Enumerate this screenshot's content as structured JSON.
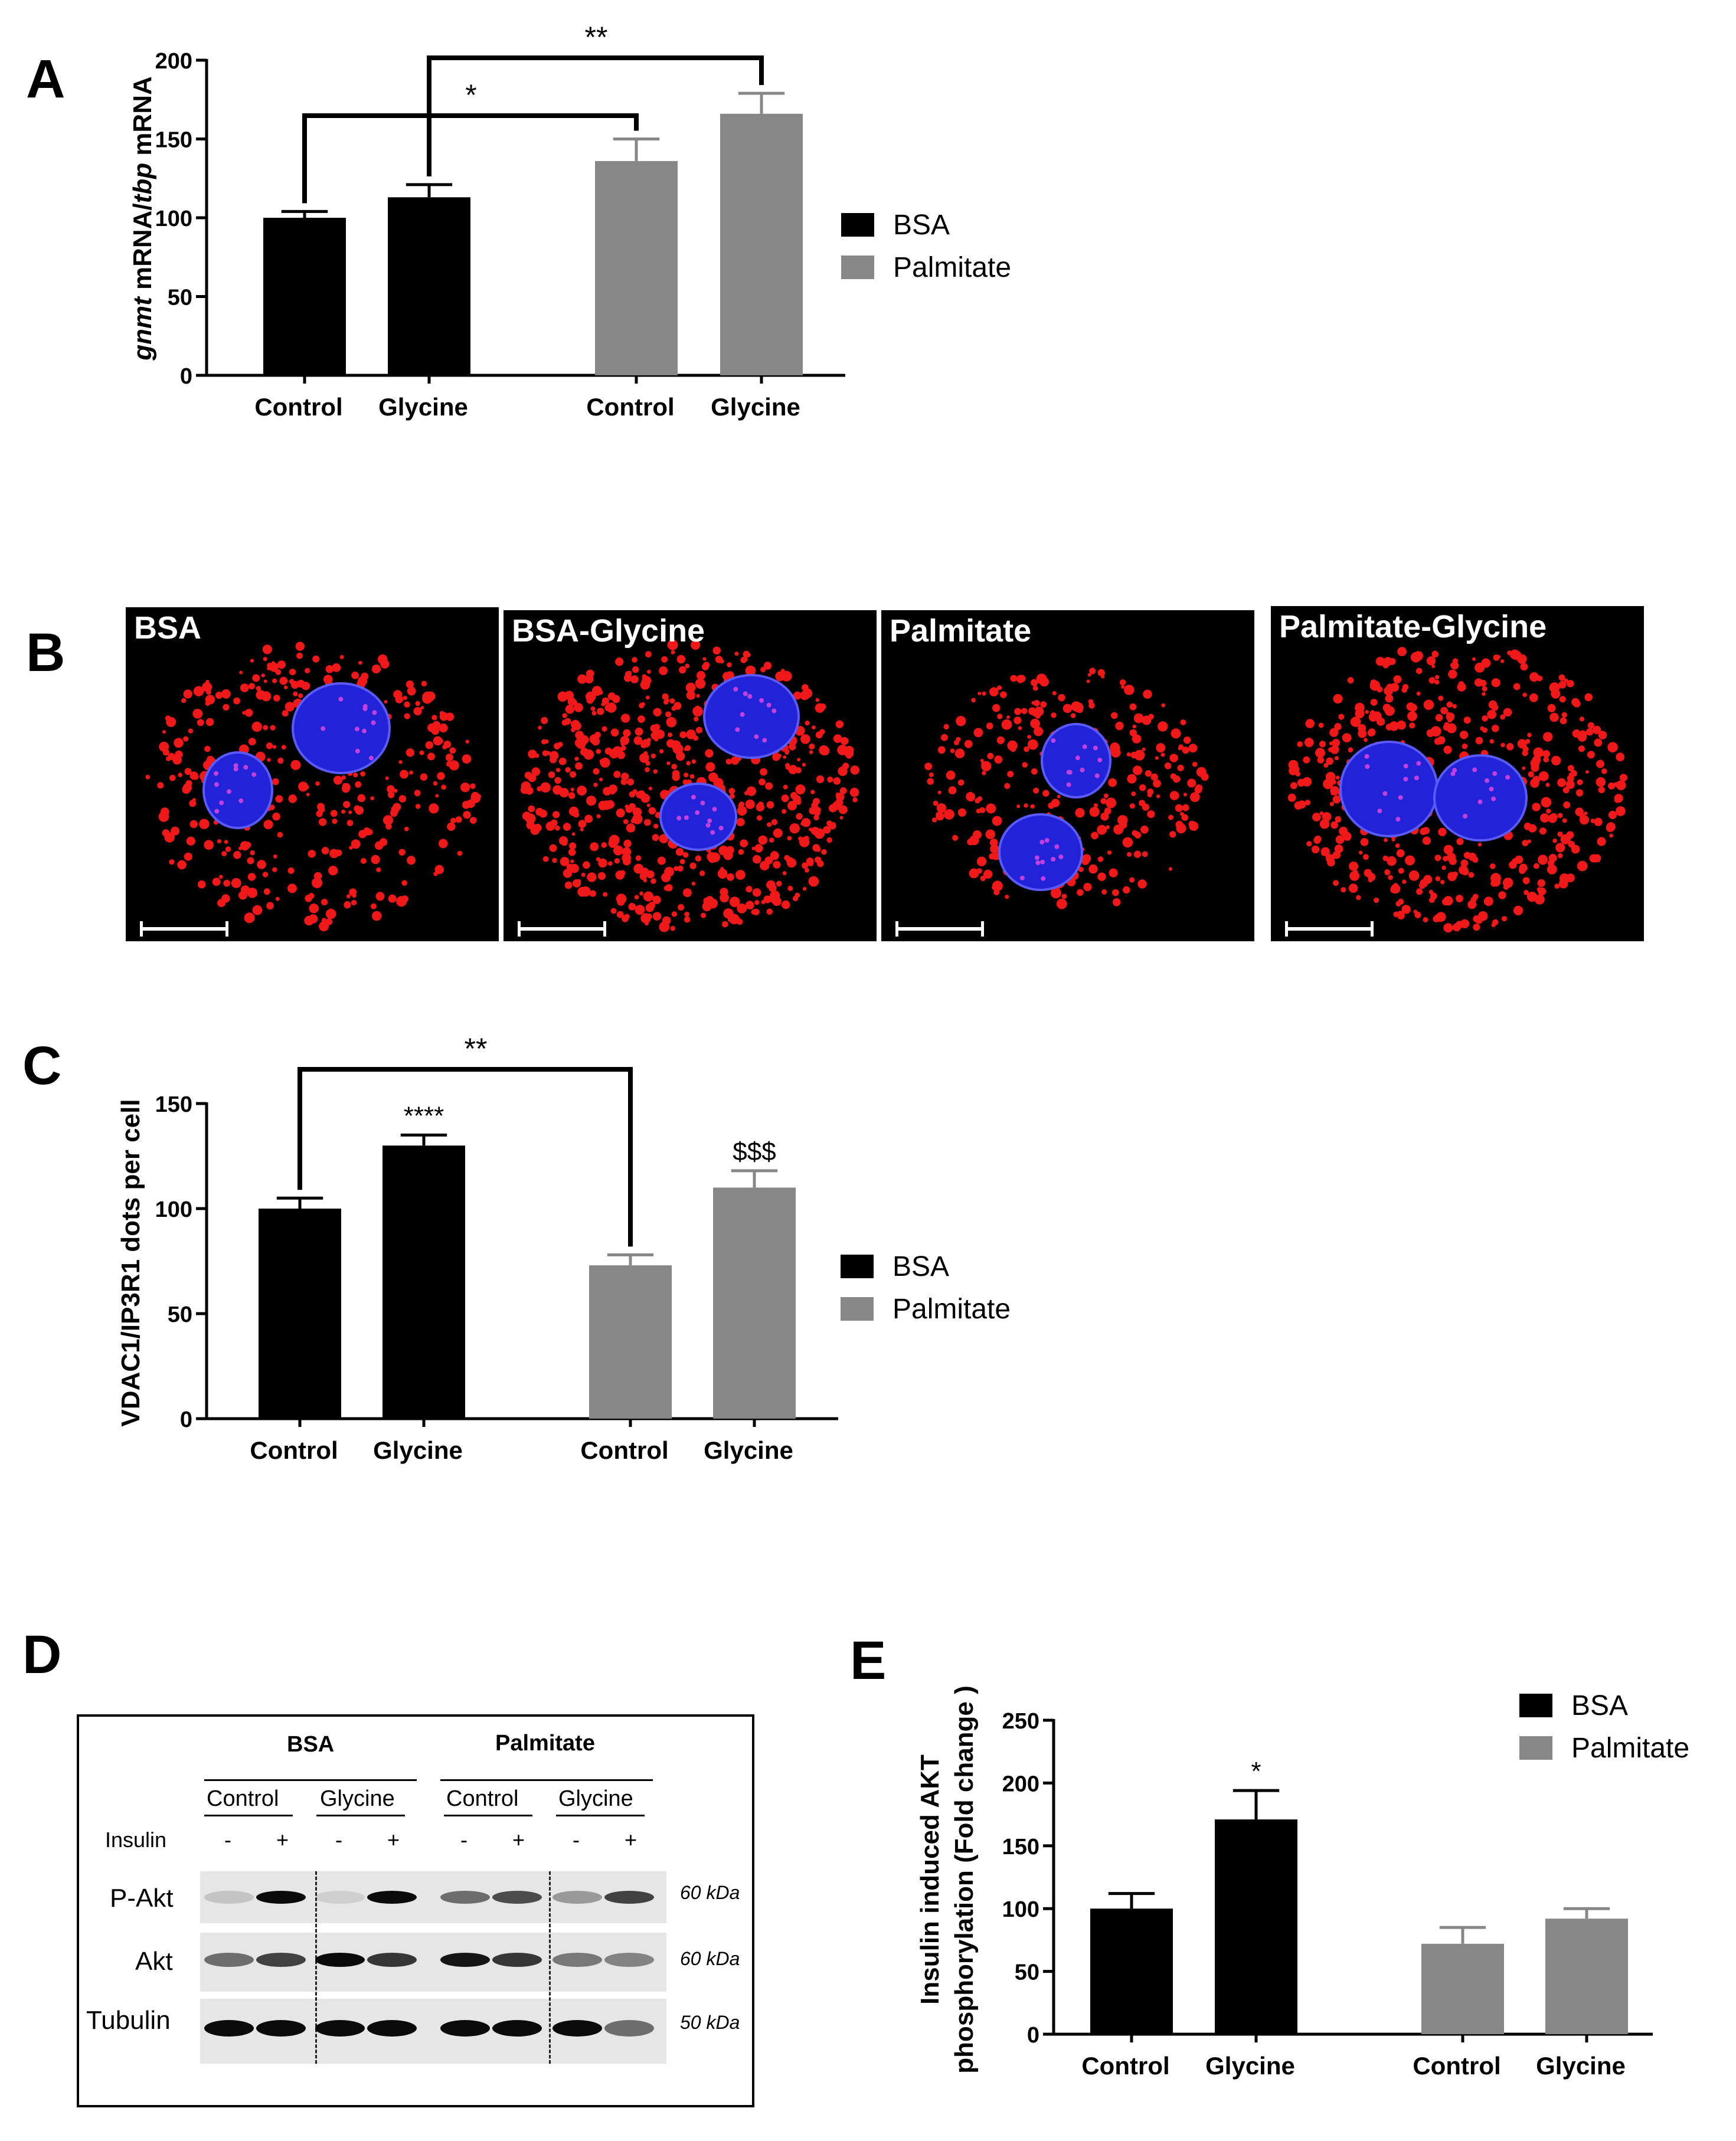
{
  "panels": {
    "A": "A",
    "B": "B",
    "C": "C",
    "D": "D",
    "E": "E"
  },
  "colors": {
    "bsa": "#000000",
    "palmitate": "#878787"
  },
  "chart_data": [
    {
      "id": "A",
      "type": "bar",
      "categories": [
        "Control",
        "Glycine",
        "Control",
        "Glycine"
      ],
      "groups": [
        "BSA",
        "BSA",
        "Palmitate",
        "Palmitate"
      ],
      "values": [
        100,
        113,
        136,
        166
      ],
      "errors": [
        4,
        8,
        14,
        13
      ],
      "ylabel_italic_1": "gnmt",
      "ylabel_mid": " mRNA/",
      "ylabel_italic_2": "tbp",
      "ylabel_end": " mRNA",
      "ylim": [
        0,
        200
      ],
      "yticks": [
        "0",
        "50",
        "100",
        "150",
        "200"
      ],
      "legend": [
        "BSA",
        "Palmitate"
      ],
      "annotations": [
        {
          "text": "*",
          "from": 0,
          "to": 2
        },
        {
          "text": "**",
          "from": 1,
          "to": 3
        }
      ]
    },
    {
      "id": "C",
      "type": "bar",
      "categories": [
        "Control",
        "Glycine",
        "Control",
        "Glycine"
      ],
      "groups": [
        "BSA",
        "BSA",
        "Palmitate",
        "Palmitate"
      ],
      "values": [
        100,
        130,
        73,
        110
      ],
      "errors": [
        5,
        5,
        5,
        8
      ],
      "ylabel": "VDAC1/IP3R1 dots per cell",
      "ylim": [
        0,
        150
      ],
      "yticks": [
        "0",
        "50",
        "100",
        "150"
      ],
      "legend": [
        "BSA",
        "Palmitate"
      ],
      "bar_labels": [
        "",
        "****",
        "",
        "$$$"
      ],
      "annotations": [
        {
          "text": "**",
          "from": 0,
          "to": 2
        }
      ]
    },
    {
      "id": "E",
      "type": "bar",
      "categories": [
        "Control",
        "Glycine",
        "Control",
        "Glycine"
      ],
      "groups": [
        "BSA",
        "BSA",
        "Palmitate",
        "Palmitate"
      ],
      "values": [
        100,
        171,
        72,
        92
      ],
      "errors": [
        12,
        23,
        13,
        8
      ],
      "ylabel_line1": "Insulin induced AKT",
      "ylabel_line2": "phosphorylation (Fold change )",
      "ylim": [
        0,
        250
      ],
      "yticks": [
        "0",
        "50",
        "100",
        "150",
        "200",
        "250"
      ],
      "legend": [
        "BSA",
        "Palmitate"
      ],
      "bar_labels": [
        "",
        "*",
        "",
        ""
      ]
    }
  ],
  "micrographs": [
    {
      "label": "BSA"
    },
    {
      "label": "BSA-Glycine"
    },
    {
      "label": "Palmitate"
    },
    {
      "label": "Palmitate-Glycine"
    }
  ],
  "blot": {
    "group_bsa": "BSA",
    "group_palmitate": "Palmitate",
    "sub_labels": [
      "Control",
      "Glycine",
      "Control",
      "Glycine"
    ],
    "insulin_label": "Insulin",
    "insulin_signs": [
      "-",
      "+",
      "-",
      "+",
      "-",
      "+",
      "-",
      "+"
    ],
    "rows": [
      "P-Akt",
      "Akt",
      "Tubulin"
    ],
    "kda": [
      "60 kDa",
      "60 kDa",
      "50 kDa"
    ]
  }
}
